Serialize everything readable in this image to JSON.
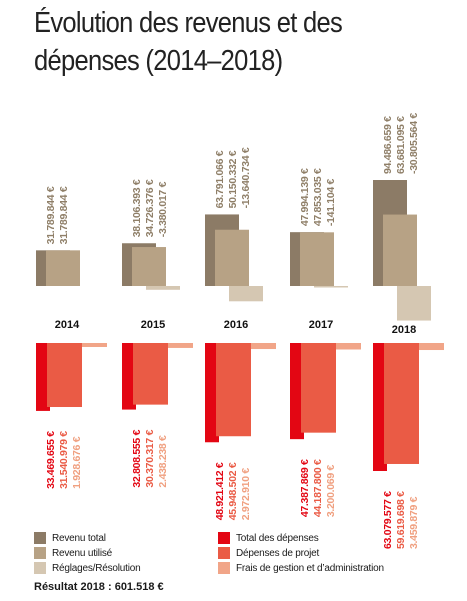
{
  "title": "Évolution des revenus et des dépenses  (2014–2018)",
  "result": "Résultat 2018 : 601.518 €",
  "colors": {
    "revenu_total": "#8c7b66",
    "revenu_utilise": "#b7a285",
    "reglages": "#d5c7b2",
    "total_depenses": "#e30613",
    "depenses_projet": "#ea5b45",
    "frais": "#f1a588",
    "text_revenu": "#8f7f68",
    "text_depenses": "#e30613",
    "text_projet": "#ea5b45",
    "text_frais": "#f0a080"
  },
  "legend": [
    {
      "label": "Revenu total",
      "color_key": "revenu_total"
    },
    {
      "label": "Revenu utilisé",
      "color_key": "revenu_utilise"
    },
    {
      "label": "Réglages/Résolution",
      "color_key": "reglages"
    },
    {
      "label": "Total des dépenses",
      "color_key": "total_depenses"
    },
    {
      "label": "Dépenses de projet",
      "color_key": "depenses_projet"
    },
    {
      "label": "Frais de gestion et d’administration",
      "color_key": "frais"
    }
  ],
  "chart_data": {
    "type": "bar",
    "categories": [
      "2014",
      "2015",
      "2016",
      "2017",
      "2018"
    ],
    "revenue_series": [
      {
        "name": "Revenu total",
        "values": [
          31789844,
          38106393,
          63791066,
          47994139,
          94486659
        ],
        "labels": [
          "31.789.844 €",
          "38.106.393 €",
          "63.791.066 €",
          "47.994.139 €",
          "94.486.659 €"
        ]
      },
      {
        "name": "Revenu utilisé",
        "values": [
          31789844,
          34726376,
          50150332,
          47853035,
          63681095
        ],
        "labels": [
          "31.789.844 €",
          "34.726.376 €",
          "50.150.332 €",
          "47.853.035 €",
          "63.681.095 €"
        ]
      },
      {
        "name": "Réglages/Résolution",
        "values": [
          0,
          -3380017,
          -13640734,
          -141104,
          -30805564
        ],
        "labels": [
          "",
          "-3.380.017 €",
          "-13.640.734 €",
          "-141.104 €",
          "-30.805.564 €"
        ]
      }
    ],
    "expense_series": [
      {
        "name": "Total des dépenses",
        "values": [
          33469655,
          32808555,
          48921412,
          47387869,
          63079577
        ],
        "labels": [
          "33.469.655 €",
          "32.808.555 €",
          "48.921.412 €",
          "47.387.869 €",
          "63.079.577 €"
        ]
      },
      {
        "name": "Dépenses de projet",
        "values": [
          31540979,
          30370317,
          45948502,
          44187800,
          59619698
        ],
        "labels": [
          "31.540.979 €",
          "30.370.317 €",
          "45.948.502 €",
          "44.187.800 €",
          "59.619.698 €"
        ]
      },
      {
        "name": "Frais de gestion et d’administration",
        "values": [
          1928676,
          2438238,
          2972910,
          3200069,
          3459879
        ],
        "labels": [
          "1.928.676 €",
          "2.438.238 €",
          "2.972.910 €",
          "3.200.069 €",
          "3.459.879 €"
        ]
      }
    ]
  }
}
